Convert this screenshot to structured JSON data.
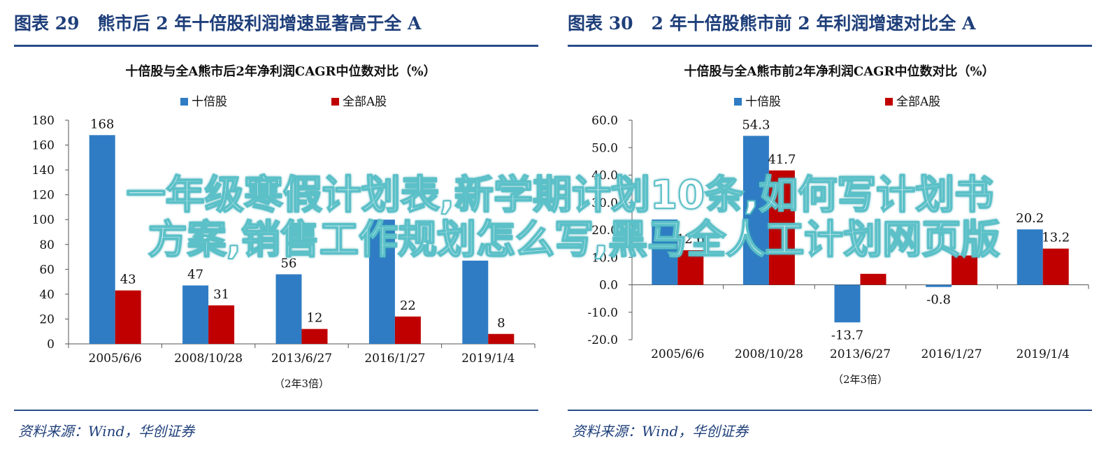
{
  "panels": [
    {
      "fig_num": "图表 29",
      "fig_title": "熊市后 2 年十倍股利润增速显著高于全 A",
      "source": "资料来源：Wind，华创证券",
      "chart_data": {
        "type": "bar",
        "title": "十倍股与全A熊市后2年净利润CAGR中位数对比（%）",
        "categories": [
          "2005/6/6",
          "2008/10/28",
          "2013/6/27",
          "2016/1/27",
          "2019/1/4"
        ],
        "series": [
          {
            "name": "十倍股",
            "color": "#2f7cc4",
            "values": [
              168,
              47,
              56,
              100,
              67
            ]
          },
          {
            "name": "全部A股",
            "color": "#c00000",
            "values": [
              43,
              31,
              12,
              22,
              8
            ]
          }
        ],
        "data_labels": [
          [
            "168",
            "47",
            "56",
            "",
            ""
          ],
          [
            "43",
            "31",
            "12",
            "22",
            "8"
          ]
        ],
        "ylim": [
          0,
          180
        ],
        "yticks": [
          0,
          20,
          40,
          60,
          80,
          100,
          120,
          140,
          160,
          180
        ],
        "ytick_labels": [
          "0",
          "20",
          "40",
          "60",
          "80",
          "100",
          "120",
          "140",
          "160",
          "180"
        ],
        "note": "（2年3倍）",
        "legend_position": "top-center"
      }
    },
    {
      "fig_num": "图表 30",
      "fig_title": "2 年十倍股熊市前 2 年利润增速对比全 A",
      "source": "资料来源：Wind，华创证券",
      "chart_data": {
        "type": "bar",
        "title": "十倍股与全A熊市前2年净利润CAGR中位数对比（%）",
        "categories": [
          "2005/6/6",
          "2008/10/28",
          "2013/6/27",
          "2016/1/27",
          "2019/1/4"
        ],
        "series": [
          {
            "name": "十倍股",
            "color": "#2f7cc4",
            "values": [
              23.8,
              54.3,
              -13.7,
              -0.8,
              20.2
            ]
          },
          {
            "name": "全部A股",
            "color": "#c00000",
            "values": [
              12.6,
              41.7,
              4.0,
              10.7,
              13.2
            ]
          }
        ],
        "data_labels": [
          [
            "",
            "54.3",
            "-13.7",
            "-0.8",
            "20.2"
          ],
          [
            "12.6",
            "41.7",
            "",
            "",
            "13.2"
          ]
        ],
        "ylim": [
          -20,
          60
        ],
        "yticks": [
          -20,
          -10,
          0,
          10,
          20,
          30,
          40,
          50,
          60
        ],
        "ytick_labels": [
          "-20.0",
          "-10.0",
          "0.0",
          "10.0",
          "20.0",
          "30.0",
          "40.0",
          "50.0",
          "60.0"
        ],
        "note": "（2年3倍）",
        "legend_position": "top-center"
      }
    }
  ],
  "overlay": {
    "line1": "一年级寒假计划表,新学期计划10条,如何写计划书",
    "line2": "方案,销售工作规划怎么写,黑马全人工计划网页版"
  }
}
